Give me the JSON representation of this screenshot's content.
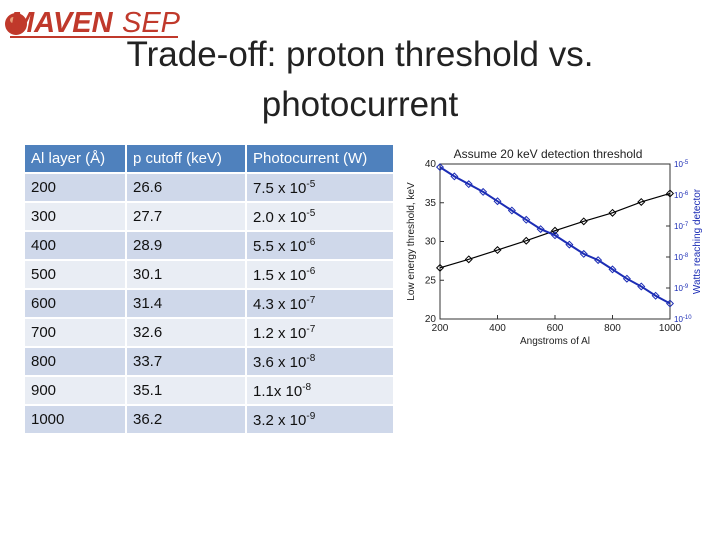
{
  "logo": {
    "brand": "MAVEN",
    "product": "SEP"
  },
  "title": "Trade-off: proton threshold vs. photocurrent",
  "table": {
    "headers": [
      "Al layer (Å)",
      "p cutoff (keV)",
      "Photocurrent (W)"
    ],
    "rows": [
      {
        "al": "200",
        "cutoff": "26.6",
        "base": "7.5 x 10",
        "exp": "-5"
      },
      {
        "al": "300",
        "cutoff": "27.7",
        "base": "2.0 x 10",
        "exp": "-5"
      },
      {
        "al": "400",
        "cutoff": "28.9",
        "base": "5.5 x 10",
        "exp": "-6"
      },
      {
        "al": "500",
        "cutoff": "30.1",
        "base": "1.5 x 10",
        "exp": "-6"
      },
      {
        "al": "600",
        "cutoff": "31.4",
        "base": "4.3 x 10",
        "exp": "-7"
      },
      {
        "al": "700",
        "cutoff": "32.6",
        "base": "1.2 x 10",
        "exp": "-7"
      },
      {
        "al": "800",
        "cutoff": "33.7",
        "base": "3.6 x 10",
        "exp": "-8"
      },
      {
        "al": "900",
        "cutoff": "35.1",
        "base": "1.1x 10",
        "exp": "-8"
      },
      {
        "al": "1000",
        "cutoff": "36.2",
        "base": "3.2 x 10",
        "exp": "-9"
      }
    ]
  },
  "colors": {
    "header": "#4f81bd",
    "row_odd": "#cfd8ea",
    "row_even": "#e9edf4",
    "logo_red": "#c0392b",
    "series_blue": "#1c2db5"
  },
  "chart_data": {
    "type": "line",
    "title": "Assume 20 keV detection threshold",
    "xlabel": "Angstroms of Al",
    "ylabel": "Low energy threshold, keV",
    "y2label": "Watts reaching detector",
    "xlim": [
      200,
      1000
    ],
    "ylim": [
      20,
      40
    ],
    "x_ticks": [
      "200",
      "400",
      "600",
      "800",
      "1000"
    ],
    "y_ticks": [
      "20",
      "25",
      "30",
      "35",
      "40"
    ],
    "y2_log_range": [
      -10,
      -5
    ],
    "y2_ticks": [
      {
        "base": "10",
        "exp": "-5",
        "val": -5
      },
      {
        "base": "10",
        "exp": "-6",
        "val": -6
      },
      {
        "base": "10",
        "exp": "-7",
        "val": -7
      },
      {
        "base": "10",
        "exp": "-8",
        "val": -8
      },
      {
        "base": "10",
        "exp": "-9",
        "val": -9
      },
      {
        "base": "10",
        "exp": "-10",
        "val": -10
      }
    ],
    "series": [
      {
        "color": "#000000",
        "axis": "left",
        "x": [
          200,
          300,
          400,
          500,
          600,
          700,
          800,
          900,
          1000
        ],
        "y": [
          26.6,
          27.7,
          28.9,
          30.1,
          31.4,
          32.6,
          33.7,
          35.1,
          36.2
        ]
      },
      {
        "color": "#1c2db5",
        "axis": "right_log",
        "x": [
          200,
          250,
          300,
          350,
          400,
          450,
          500,
          550,
          600,
          650,
          700,
          750,
          800,
          850,
          900,
          950,
          1000
        ],
        "y": [
          -5.1,
          -5.4,
          -5.65,
          -5.9,
          -6.2,
          -6.5,
          -6.8,
          -7.1,
          -7.3,
          -7.6,
          -7.9,
          -8.1,
          -8.4,
          -8.7,
          -8.95,
          -9.25,
          -9.5
        ]
      }
    ]
  }
}
